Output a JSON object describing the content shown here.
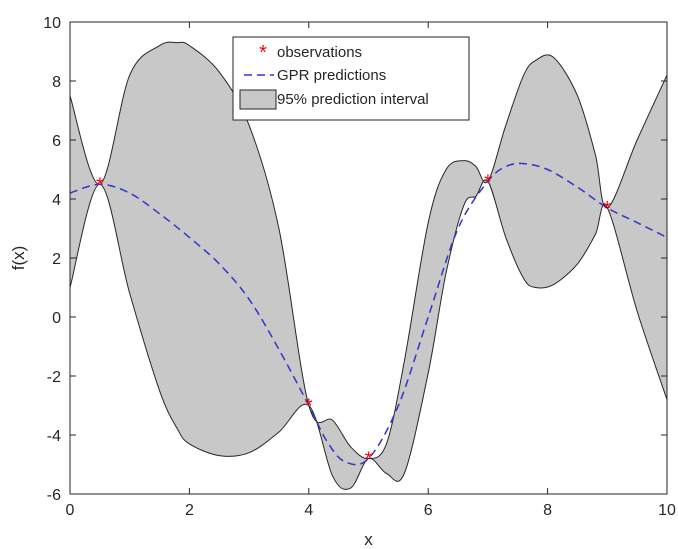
{
  "chart_data": {
    "type": "area",
    "title": "",
    "xlabel": "x",
    "ylabel": "f(x)",
    "xlim": [
      0,
      10
    ],
    "ylim": [
      -6,
      10
    ],
    "xticks": [
      "0",
      "2",
      "4",
      "6",
      "8",
      "10"
    ],
    "yticks": [
      "-6",
      "-4",
      "-2",
      "0",
      "2",
      "4",
      "6",
      "8",
      "10"
    ],
    "grid": false,
    "legend_position": "top-center",
    "series": [
      {
        "name": "observations",
        "kind": "scatter",
        "color": "#ff0000",
        "marker": "*",
        "x": [
          0.5,
          4,
          5,
          7,
          9
        ],
        "y": [
          4.5,
          -3.0,
          -4.8,
          4.6,
          3.7
        ]
      },
      {
        "name": "GPR predictions",
        "kind": "line",
        "style": "dashed",
        "color": "#3333cc",
        "x": [
          0,
          0.5,
          1,
          1.5,
          2,
          2.5,
          3,
          3.5,
          4,
          4.3,
          4.6,
          5,
          5.5,
          6,
          6.5,
          7,
          7.3,
          7.6,
          8,
          8.5,
          9,
          9.5,
          10
        ],
        "y": [
          4.2,
          4.5,
          4.2,
          3.5,
          2.7,
          1.8,
          0.6,
          -1.1,
          -3.0,
          -4.2,
          -4.9,
          -4.8,
          -3.0,
          0.0,
          3.0,
          4.6,
          5.1,
          5.2,
          5.0,
          4.4,
          3.7,
          3.2,
          2.7
        ]
      },
      {
        "name": "95% prediction interval",
        "kind": "band",
        "color": "#c8c8c8",
        "x": [
          0,
          0.5,
          1,
          1.5,
          1.8,
          2,
          2.5,
          3,
          3.5,
          4,
          4.4,
          4.7,
          5,
          5.3,
          5.6,
          6,
          6.3,
          6.6,
          6.8,
          7,
          7.3,
          7.6,
          7.8,
          8.1,
          8.5,
          8.8,
          9,
          9.5,
          10
        ],
        "upper": [
          7.5,
          4.5,
          8.2,
          9.2,
          9.3,
          9.2,
          8.3,
          6.5,
          3.0,
          -3.0,
          -3.5,
          -4.4,
          -4.8,
          -4.3,
          -1.5,
          3.2,
          5.0,
          5.3,
          5.1,
          4.6,
          6.5,
          8.2,
          8.7,
          8.8,
          7.5,
          5.5,
          3.7,
          6.0,
          8.2
        ],
        "lower": [
          1.0,
          4.5,
          0.8,
          -2.5,
          -3.8,
          -4.3,
          -4.7,
          -4.6,
          -3.9,
          -3.0,
          -5.4,
          -5.8,
          -4.8,
          -5.3,
          -5.3,
          -1.9,
          1.5,
          3.8,
          4.1,
          4.6,
          2.7,
          1.3,
          1.0,
          1.1,
          1.8,
          2.8,
          3.7,
          0.2,
          -2.8
        ]
      }
    ]
  }
}
